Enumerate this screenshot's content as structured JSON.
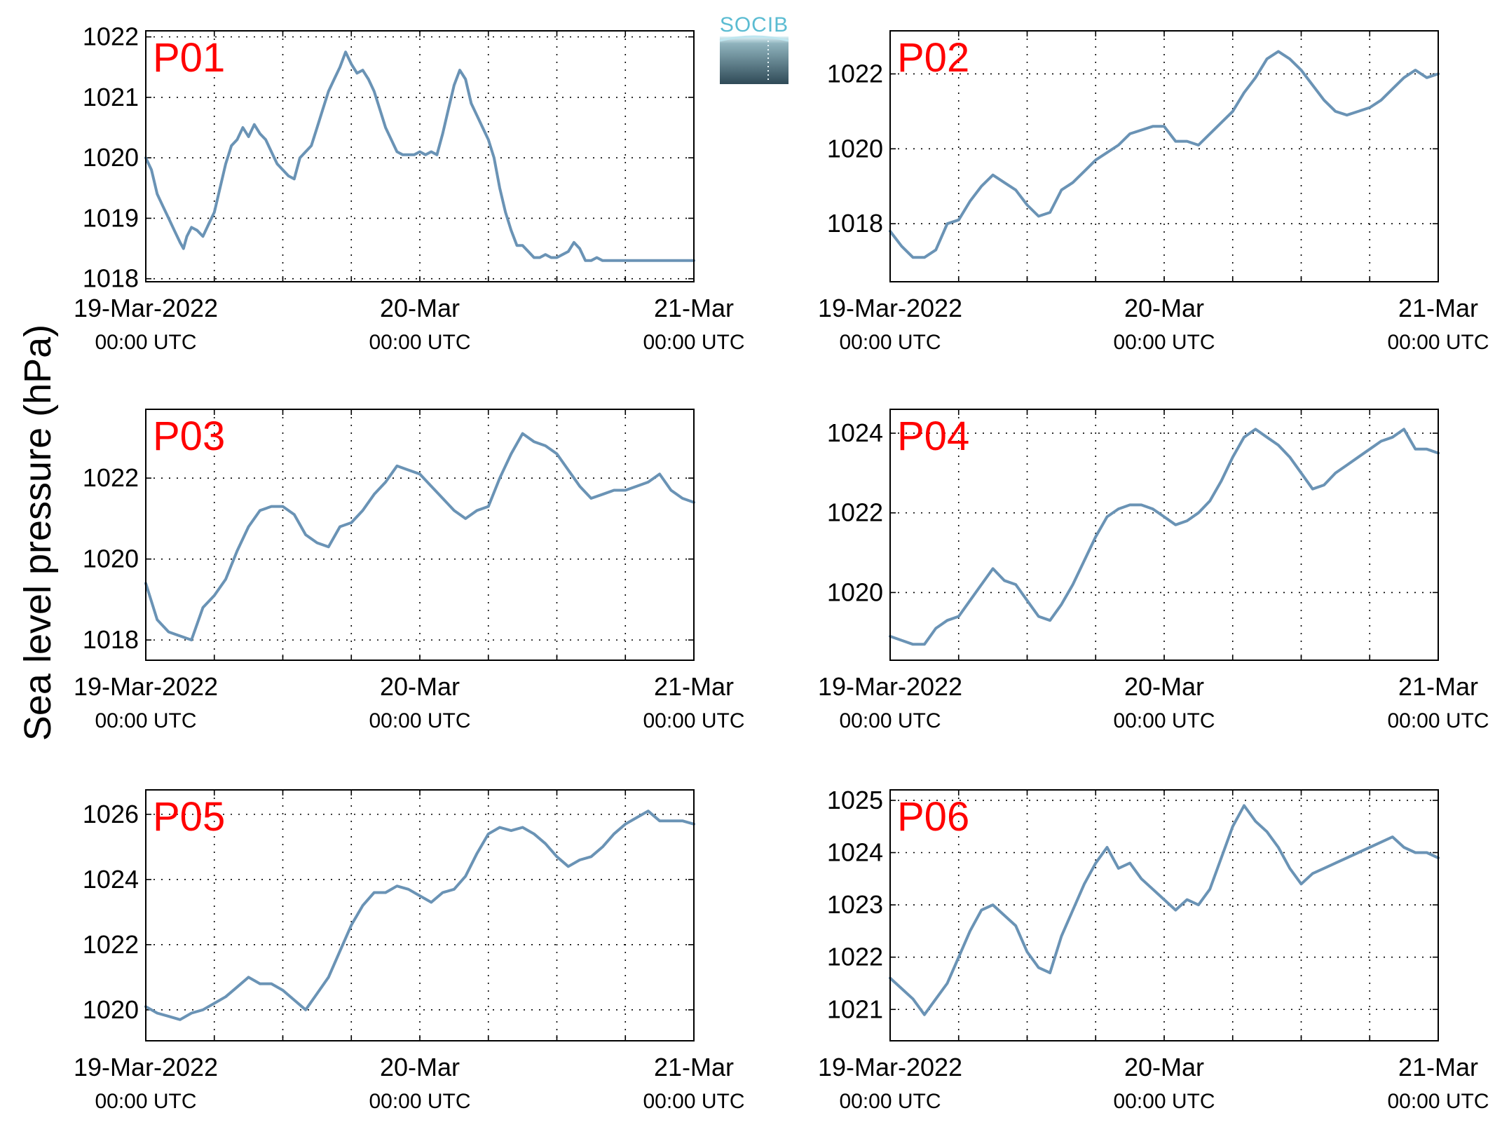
{
  "figure": {
    "ylabel": "Sea level pressure (hPa)",
    "logo": "SOCIB",
    "line_color": "#6a93b5",
    "label_color": "#ff0000"
  },
  "chart_data": [
    {
      "type": "line",
      "label": "P01",
      "xlim": [
        0,
        48
      ],
      "ylim": [
        1017.95,
        1022.1
      ],
      "yticks": [
        1018,
        1019,
        1020,
        1021,
        1022
      ],
      "xtick_labels": [
        {
          "hour": 0,
          "date": "19-Mar-2022",
          "time": "00:00 UTC"
        },
        {
          "hour": 24,
          "date": "20-Mar",
          "time": "00:00 UTC"
        },
        {
          "hour": 48,
          "date": "21-Mar",
          "time": "00:00 UTC"
        }
      ],
      "series": [
        {
          "x": [
            0,
            0.5,
            1,
            1.5,
            2,
            2.5,
            3,
            3.3,
            3.6,
            4,
            4.5,
            5,
            5.5,
            6,
            6.5,
            7,
            7.5,
            8,
            8.5,
            9,
            9.5,
            10,
            10.5,
            11,
            11.5,
            12,
            12.5,
            13,
            13.5,
            14,
            14.5,
            15,
            15.5,
            16,
            16.5,
            17,
            17.5,
            18,
            18.5,
            19,
            19.5,
            20,
            20.5,
            21,
            21.5,
            22,
            22.5,
            23,
            23.5,
            24,
            24.5,
            25,
            25.5,
            26,
            26.5,
            27,
            27.5,
            28,
            28.5,
            29,
            29.5,
            30,
            30.5,
            31,
            31.5,
            32,
            32.5,
            33,
            33.5,
            34,
            34.5,
            35,
            35.5,
            36,
            36.5,
            37,
            37.5,
            38,
            38.5,
            39,
            39.5,
            40,
            40.5,
            41,
            41.5,
            42,
            42.5,
            43,
            43.5,
            44,
            44.5,
            45,
            45.5,
            46,
            46.5,
            47,
            47.5,
            48
          ],
          "y": [
            1020,
            1019.8,
            1019.4,
            1019.2,
            1019,
            1018.8,
            1018.6,
            1018.5,
            1018.7,
            1018.85,
            1018.8,
            1018.7,
            1018.9,
            1019.1,
            1019.5,
            1019.9,
            1020.2,
            1020.3,
            1020.5,
            1020.35,
            1020.55,
            1020.4,
            1020.3,
            1020.1,
            1019.9,
            1019.8,
            1019.7,
            1019.65,
            1020,
            1020.1,
            1020.2,
            1020.5,
            1020.8,
            1021.1,
            1021.3,
            1021.5,
            1021.75,
            1021.55,
            1021.4,
            1021.45,
            1021.3,
            1021.1,
            1020.8,
            1020.5,
            1020.3,
            1020.1,
            1020.05,
            1020.05,
            1020.05,
            1020.1,
            1020.05,
            1020.1,
            1020.05,
            1020.4,
            1020.8,
            1021.2,
            1021.45,
            1021.3,
            1020.9,
            1020.7,
            1020.5,
            1020.3,
            1020,
            1019.5,
            1019.1,
            1018.8,
            1018.55,
            1018.55,
            1018.45,
            1018.35,
            1018.35,
            1018.4,
            1018.35,
            1018.35,
            1018.4,
            1018.45,
            1018.6,
            1018.5,
            1018.3,
            1018.3,
            1018.35,
            1018.3,
            1018.3,
            1018.3,
            1018.3,
            1018.3,
            1018.3,
            1018.3,
            1018.3,
            1018.3,
            1018.3,
            1018.3,
            1018.3,
            1018.3,
            1018.3,
            1018.3,
            1018.3,
            1018.3
          ]
        }
      ]
    },
    {
      "type": "line",
      "label": "P02",
      "xlim": [
        0,
        48
      ],
      "ylim": [
        1016.45,
        1023.15
      ],
      "yticks": [
        1018,
        1020,
        1022
      ],
      "xtick_labels": [
        {
          "hour": 0,
          "date": "19-Mar-2022",
          "time": "00:00 UTC"
        },
        {
          "hour": 24,
          "date": "20-Mar",
          "time": "00:00 UTC"
        },
        {
          "hour": 48,
          "date": "21-Mar",
          "time": "00:00 UTC"
        }
      ],
      "series": [
        {
          "x": [
            0,
            1,
            2,
            3,
            4,
            5,
            6,
            7,
            8,
            9,
            10,
            11,
            12,
            13,
            14,
            15,
            16,
            17,
            18,
            19,
            20,
            21,
            22,
            23,
            24,
            25,
            26,
            27,
            28,
            29,
            30,
            31,
            32,
            33,
            34,
            35,
            36,
            37,
            38,
            39,
            40,
            41,
            42,
            43,
            44,
            45,
            46,
            47,
            48
          ],
          "y": [
            1017.8,
            1017.4,
            1017.1,
            1017.1,
            1017.3,
            1018,
            1018.1,
            1018.6,
            1019,
            1019.3,
            1019.1,
            1018.9,
            1018.5,
            1018.2,
            1018.3,
            1018.9,
            1019.1,
            1019.4,
            1019.7,
            1019.9,
            1020.1,
            1020.4,
            1020.5,
            1020.6,
            1020.6,
            1020.2,
            1020.2,
            1020.1,
            1020.4,
            1020.7,
            1021,
            1021.5,
            1021.9,
            1022.4,
            1022.6,
            1022.4,
            1022.1,
            1021.7,
            1021.3,
            1021,
            1020.9,
            1021,
            1021.1,
            1021.3,
            1021.6,
            1021.9,
            1022.1,
            1021.9,
            1022
          ]
        }
      ]
    },
    {
      "type": "line",
      "label": "P03",
      "xlim": [
        0,
        48
      ],
      "ylim": [
        1017.5,
        1023.7
      ],
      "yticks": [
        1018,
        1020,
        1022
      ],
      "xtick_labels": [
        {
          "hour": 0,
          "date": "19-Mar-2022",
          "time": "00:00 UTC"
        },
        {
          "hour": 24,
          "date": "20-Mar",
          "time": "00:00 UTC"
        },
        {
          "hour": 48,
          "date": "21-Mar",
          "time": "00:00 UTC"
        }
      ],
      "series": [
        {
          "x": [
            0,
            1,
            2,
            3,
            4,
            5,
            6,
            7,
            8,
            9,
            10,
            11,
            12,
            13,
            14,
            15,
            16,
            17,
            18,
            19,
            20,
            21,
            22,
            23,
            24,
            25,
            26,
            27,
            28,
            29,
            30,
            31,
            32,
            33,
            34,
            35,
            36,
            37,
            38,
            39,
            40,
            41,
            42,
            43,
            44,
            45,
            46,
            47,
            48
          ],
          "y": [
            1019.4,
            1018.5,
            1018.2,
            1018.1,
            1018,
            1018.8,
            1019.1,
            1019.5,
            1020.2,
            1020.8,
            1021.2,
            1021.3,
            1021.3,
            1021.1,
            1020.6,
            1020.4,
            1020.3,
            1020.8,
            1020.9,
            1021.2,
            1021.6,
            1021.9,
            1022.3,
            1022.2,
            1022.1,
            1021.8,
            1021.5,
            1021.2,
            1021,
            1021.2,
            1021.3,
            1022,
            1022.6,
            1023.1,
            1022.9,
            1022.8,
            1022.6,
            1022.2,
            1021.8,
            1021.5,
            1021.6,
            1021.7,
            1021.7,
            1021.8,
            1021.9,
            1022.1,
            1021.7,
            1021.5,
            1021.4
          ]
        }
      ]
    },
    {
      "type": "line",
      "label": "P04",
      "xlim": [
        0,
        48
      ],
      "ylim": [
        1018.3,
        1024.6
      ],
      "yticks": [
        1020,
        1022,
        1024
      ],
      "xtick_labels": [
        {
          "hour": 0,
          "date": "19-Mar-2022",
          "time": "00:00 UTC"
        },
        {
          "hour": 24,
          "date": "20-Mar",
          "time": "00:00 UTC"
        },
        {
          "hour": 48,
          "date": "21-Mar",
          "time": "00:00 UTC"
        }
      ],
      "series": [
        {
          "x": [
            0,
            1,
            2,
            3,
            4,
            5,
            6,
            7,
            8,
            9,
            10,
            11,
            12,
            13,
            14,
            15,
            16,
            17,
            18,
            19,
            20,
            21,
            22,
            23,
            24,
            25,
            26,
            27,
            28,
            29,
            30,
            31,
            32,
            33,
            34,
            35,
            36,
            37,
            38,
            39,
            40,
            41,
            42,
            43,
            44,
            45,
            46,
            47,
            48
          ],
          "y": [
            1018.9,
            1018.8,
            1018.7,
            1018.7,
            1019.1,
            1019.3,
            1019.4,
            1019.8,
            1020.2,
            1020.6,
            1020.3,
            1020.2,
            1019.8,
            1019.4,
            1019.3,
            1019.7,
            1020.2,
            1020.8,
            1021.4,
            1021.9,
            1022.1,
            1022.2,
            1022.2,
            1022.1,
            1021.9,
            1021.7,
            1021.8,
            1022,
            1022.3,
            1022.8,
            1023.4,
            1023.9,
            1024.1,
            1023.9,
            1023.7,
            1023.4,
            1023,
            1022.6,
            1022.7,
            1023,
            1023.2,
            1023.4,
            1023.6,
            1023.8,
            1023.9,
            1024.1,
            1023.6,
            1023.6,
            1023.5
          ]
        }
      ]
    },
    {
      "type": "line",
      "label": "P05",
      "xlim": [
        0,
        48
      ],
      "ylim": [
        1019.05,
        1026.75
      ],
      "yticks": [
        1020,
        1022,
        1024,
        1026
      ],
      "xtick_labels": [
        {
          "hour": 0,
          "date": "19-Mar-2022",
          "time": "00:00 UTC"
        },
        {
          "hour": 24,
          "date": "20-Mar",
          "time": "00:00 UTC"
        },
        {
          "hour": 48,
          "date": "21-Mar",
          "time": "00:00 UTC"
        }
      ],
      "series": [
        {
          "x": [
            0,
            1,
            2,
            3,
            4,
            5,
            6,
            7,
            8,
            9,
            10,
            11,
            12,
            13,
            14,
            15,
            16,
            17,
            18,
            19,
            20,
            21,
            22,
            23,
            24,
            25,
            26,
            27,
            28,
            29,
            30,
            31,
            32,
            33,
            34,
            35,
            36,
            37,
            38,
            39,
            40,
            41,
            42,
            43,
            44,
            45,
            46,
            47,
            48
          ],
          "y": [
            1020.1,
            1019.9,
            1019.8,
            1019.7,
            1019.9,
            1020,
            1020.2,
            1020.4,
            1020.7,
            1021,
            1020.8,
            1020.8,
            1020.6,
            1020.3,
            1020,
            1020.5,
            1021,
            1021.8,
            1022.6,
            1023.2,
            1023.6,
            1023.6,
            1023.8,
            1023.7,
            1023.5,
            1023.3,
            1023.6,
            1023.7,
            1024.1,
            1024.8,
            1025.4,
            1025.6,
            1025.5,
            1025.6,
            1025.4,
            1025.1,
            1024.7,
            1024.4,
            1024.6,
            1024.7,
            1025,
            1025.4,
            1025.7,
            1025.9,
            1026.1,
            1025.8,
            1025.8,
            1025.8,
            1025.7
          ]
        }
      ]
    },
    {
      "type": "line",
      "label": "P06",
      "xlim": [
        0,
        48
      ],
      "ylim": [
        1020.4,
        1025.2
      ],
      "yticks": [
        1021,
        1022,
        1023,
        1024,
        1025
      ],
      "xtick_labels": [
        {
          "hour": 0,
          "date": "19-Mar-2022",
          "time": "00:00 UTC"
        },
        {
          "hour": 24,
          "date": "20-Mar",
          "time": "00:00 UTC"
        },
        {
          "hour": 48,
          "date": "21-Mar",
          "time": "00:00 UTC"
        }
      ],
      "series": [
        {
          "x": [
            0,
            1,
            2,
            3,
            4,
            5,
            6,
            7,
            8,
            9,
            10,
            11,
            12,
            13,
            14,
            15,
            16,
            17,
            18,
            19,
            20,
            21,
            22,
            23,
            24,
            25,
            26,
            27,
            28,
            29,
            30,
            31,
            32,
            33,
            34,
            35,
            36,
            37,
            38,
            39,
            40,
            41,
            42,
            43,
            44,
            45,
            46,
            47,
            48
          ],
          "y": [
            1021.6,
            1021.4,
            1021.2,
            1020.9,
            1021.2,
            1021.5,
            1022,
            1022.5,
            1022.9,
            1023,
            1022.8,
            1022.6,
            1022.1,
            1021.8,
            1021.7,
            1022.4,
            1022.9,
            1023.4,
            1023.8,
            1024.1,
            1023.7,
            1023.8,
            1023.5,
            1023.3,
            1023.1,
            1022.9,
            1023.1,
            1023,
            1023.3,
            1023.9,
            1024.5,
            1024.9,
            1024.6,
            1024.4,
            1024.1,
            1023.7,
            1023.4,
            1023.6,
            1023.7,
            1023.8,
            1023.9,
            1024,
            1024.1,
            1024.2,
            1024.3,
            1024.1,
            1024,
            1024,
            1023.9
          ]
        }
      ]
    }
  ]
}
